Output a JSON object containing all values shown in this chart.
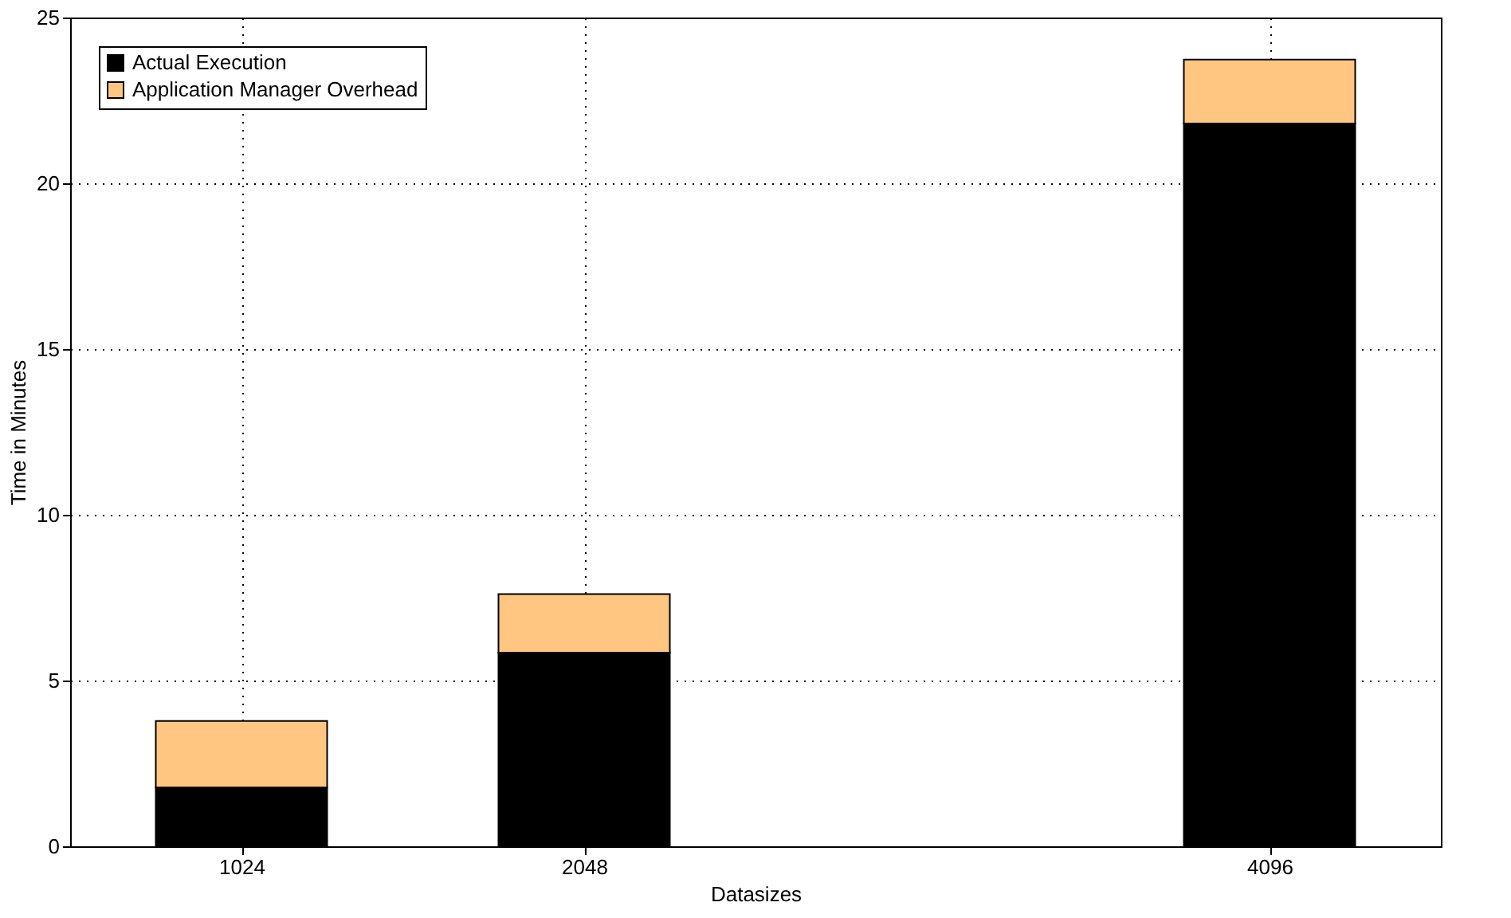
{
  "chart_data": {
    "type": "bar",
    "stacked": true,
    "xlabel": "Datasizes",
    "ylabel": "Time in Minutes",
    "x": [
      1024,
      2048,
      4096
    ],
    "series": [
      {
        "name": "Actual Execution",
        "color": "#000000",
        "values": [
          1.77,
          5.84,
          21.8
        ]
      },
      {
        "name": "Application Manager Overhead",
        "color": "#ffc682",
        "values": [
          2.01,
          1.77,
          1.93
        ]
      }
    ],
    "xlim": [
      512,
      4608
    ],
    "xticks": [
      1024,
      2048,
      4096
    ],
    "ylim": [
      0,
      25
    ],
    "yticks": [
      0,
      5,
      10,
      15,
      20,
      25
    ],
    "grid": true,
    "legend": "top left"
  }
}
